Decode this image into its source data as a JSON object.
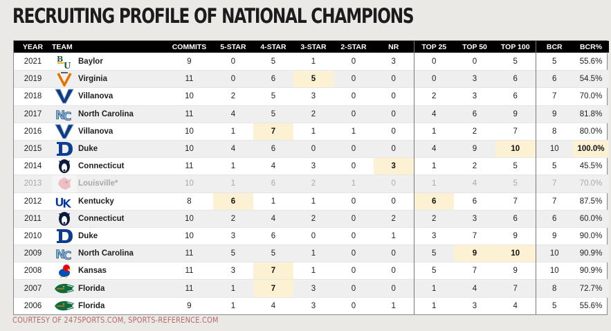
{
  "title": "RECRUITING PROFILE OF NATIONAL CHAMPIONS",
  "footer": "COURTESY OF 247SPORTS.COM, SPORTS-REFERENCE.COM",
  "columns": [
    "YEAR",
    "TEAM",
    "COMMITS",
    "5-STAR",
    "4-STAR",
    "3-STAR",
    "2-STAR",
    "NR",
    "TOP 25",
    "TOP 50",
    "TOP 100",
    "BCR",
    "BCR%"
  ],
  "colors": {
    "header_bg": "#000000",
    "highlight": "#fcf1d3",
    "alt_row": "#efefef",
    "footer_text": "#b56a68"
  },
  "rows": [
    {
      "year": "2021",
      "team": "Baylor",
      "logo": "baylor-logo",
      "commits": "9",
      "five": "0",
      "four": "5",
      "three": "1",
      "two": "0",
      "nr": "3",
      "top25": "0",
      "top50": "0",
      "top100": "5",
      "bcr": "5",
      "bcrp": "55.6%",
      "hl": []
    },
    {
      "year": "2019",
      "team": "Virginia",
      "logo": "virginia-logo",
      "commits": "11",
      "five": "0",
      "four": "6",
      "three": "5",
      "two": "0",
      "nr": "0",
      "top25": "0",
      "top50": "3",
      "top100": "6",
      "bcr": "6",
      "bcrp": "54.5%",
      "hl": [
        "three"
      ]
    },
    {
      "year": "2018",
      "team": "Villanova",
      "logo": "villanova-logo",
      "commits": "10",
      "five": "2",
      "four": "5",
      "three": "3",
      "two": "0",
      "nr": "0",
      "top25": "2",
      "top50": "3",
      "top100": "6",
      "bcr": "7",
      "bcrp": "70.0%",
      "hl": []
    },
    {
      "year": "2017",
      "team": "North Carolina",
      "logo": "north-carolina-logo",
      "commits": "11",
      "five": "4",
      "four": "5",
      "three": "2",
      "two": "0",
      "nr": "0",
      "top25": "4",
      "top50": "6",
      "top100": "9",
      "bcr": "9",
      "bcrp": "81.8%",
      "hl": []
    },
    {
      "year": "2016",
      "team": "Villanova",
      "logo": "villanova-logo",
      "commits": "10",
      "five": "1",
      "four": "7",
      "three": "1",
      "two": "1",
      "nr": "0",
      "top25": "1",
      "top50": "2",
      "top100": "7",
      "bcr": "8",
      "bcrp": "80.0%",
      "hl": [
        "four"
      ]
    },
    {
      "year": "2015",
      "team": "Duke",
      "logo": "duke-logo",
      "commits": "10",
      "five": "4",
      "four": "6",
      "three": "0",
      "two": "0",
      "nr": "0",
      "top25": "4",
      "top50": "9",
      "top100": "10",
      "bcr": "10",
      "bcrp": "100.0%",
      "hl": [
        "top100",
        "bcrp"
      ]
    },
    {
      "year": "2014",
      "team": "Connecticut",
      "logo": "connecticut-logo",
      "commits": "11",
      "five": "1",
      "four": "4",
      "three": "3",
      "two": "0",
      "nr": "3",
      "top25": "1",
      "top50": "2",
      "top100": "5",
      "bcr": "5",
      "bcrp": "45.5%",
      "hl": [
        "nr"
      ]
    },
    {
      "year": "2013",
      "team": "Louisville*",
      "logo": "louisville-logo",
      "commits": "10",
      "five": "1",
      "four": "6",
      "three": "2",
      "two": "1",
      "nr": "0",
      "top25": "1",
      "top50": "4",
      "top100": "5",
      "bcr": "7",
      "bcrp": "70.0%",
      "hl": [],
      "dim": true
    },
    {
      "year": "2012",
      "team": "Kentucky",
      "logo": "kentucky-logo",
      "commits": "8",
      "five": "6",
      "four": "1",
      "three": "1",
      "two": "0",
      "nr": "0",
      "top25": "6",
      "top50": "6",
      "top100": "7",
      "bcr": "7",
      "bcrp": "87.5%",
      "hl": [
        "five",
        "top25"
      ]
    },
    {
      "year": "2011",
      "team": "Connecticut",
      "logo": "connecticut-logo",
      "commits": "10",
      "five": "2",
      "four": "4",
      "three": "2",
      "two": "0",
      "nr": "2",
      "top25": "2",
      "top50": "3",
      "top100": "6",
      "bcr": "6",
      "bcrp": "60.0%",
      "hl": []
    },
    {
      "year": "2010",
      "team": "Duke",
      "logo": "duke-logo",
      "commits": "10",
      "five": "3",
      "four": "6",
      "three": "0",
      "two": "0",
      "nr": "1",
      "top25": "3",
      "top50": "7",
      "top100": "9",
      "bcr": "9",
      "bcrp": "90.0%",
      "hl": []
    },
    {
      "year": "2009",
      "team": "North Carolina",
      "logo": "north-carolina-logo",
      "commits": "11",
      "five": "5",
      "four": "5",
      "three": "1",
      "two": "0",
      "nr": "0",
      "top25": "5",
      "top50": "9",
      "top100": "10",
      "bcr": "10",
      "bcrp": "90.9%",
      "hl": [
        "top50",
        "top100"
      ]
    },
    {
      "year": "2008",
      "team": "Kansas",
      "logo": "kansas-logo",
      "commits": "11",
      "five": "3",
      "four": "7",
      "three": "1",
      "two": "0",
      "nr": "0",
      "top25": "5",
      "top50": "7",
      "top100": "9",
      "bcr": "10",
      "bcrp": "90.9%",
      "hl": [
        "four"
      ]
    },
    {
      "year": "2007",
      "team": "Florida",
      "logo": "florida-logo",
      "commits": "11",
      "five": "1",
      "four": "7",
      "three": "3",
      "two": "0",
      "nr": "0",
      "top25": "1",
      "top50": "4",
      "top100": "7",
      "bcr": "8",
      "bcrp": "72.7%",
      "hl": [
        "four"
      ]
    },
    {
      "year": "2006",
      "team": "Florida",
      "logo": "florida-logo",
      "commits": "9",
      "five": "1",
      "four": "4",
      "three": "3",
      "two": "0",
      "nr": "1",
      "top25": "1",
      "top50": "3",
      "top100": "4",
      "bcr": "5",
      "bcrp": "55.6%",
      "hl": []
    }
  ]
}
